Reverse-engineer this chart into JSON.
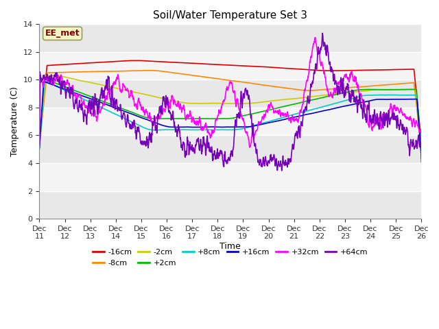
{
  "title": "Soil/Water Temperature Set 3",
  "xlabel": "Time",
  "ylabel": "Temperature (C)",
  "ylim": [
    0,
    14
  ],
  "yticks": [
    0,
    2,
    4,
    6,
    8,
    10,
    12,
    14
  ],
  "x_start": 11,
  "x_end": 26,
  "n_points": 1500,
  "annotation_text": "EE_met",
  "annotation_color": "#8B0000",
  "annotation_bg": "#f5f5c8",
  "annotation_border": "#999966",
  "fig_bg": "#ffffff",
  "plot_bg": "#ffffff",
  "band_colors": [
    "#e8e8e8",
    "#f4f4f4"
  ],
  "series": [
    {
      "label": "-16cm",
      "color": "#dd0000",
      "lw": 1.2
    },
    {
      "label": "-8cm",
      "color": "#ff8800",
      "lw": 1.2
    },
    {
      "label": "-2cm",
      "color": "#cccc00",
      "lw": 1.2
    },
    {
      "label": "+2cm",
      "color": "#00bb00",
      "lw": 1.2
    },
    {
      "label": "+8cm",
      "color": "#00cccc",
      "lw": 1.2
    },
    {
      "label": "+16cm",
      "color": "#0000cc",
      "lw": 1.2
    },
    {
      "label": "+32cm",
      "color": "#ff00ff",
      "lw": 1.2
    },
    {
      "label": "+64cm",
      "color": "#7700bb",
      "lw": 1.2
    }
  ],
  "xtick_labels": [
    "Dec 11",
    "Dec 12",
    "Dec 13",
    "Dec 14",
    "Dec 15",
    "Dec 16",
    "Dec 17",
    "Dec 18",
    "Dec 19",
    "Dec 20",
    "Dec 21",
    "Dec 22",
    "Dec 23",
    "Dec 24",
    "Dec 25",
    "Dec 26"
  ],
  "xtick_positions": [
    11,
    12,
    13,
    14,
    15,
    16,
    17,
    18,
    19,
    20,
    21,
    22,
    23,
    24,
    25,
    26
  ]
}
